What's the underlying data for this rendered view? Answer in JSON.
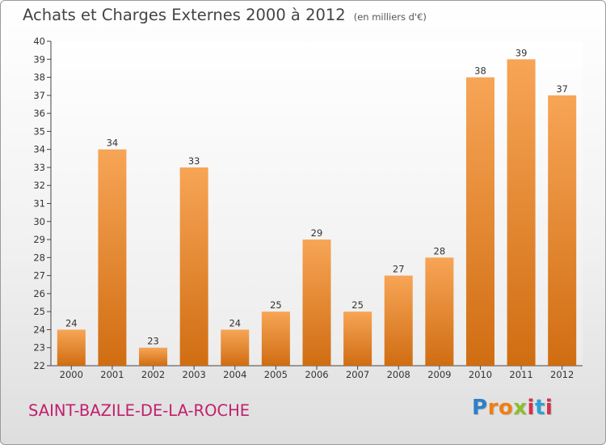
{
  "chart_data": {
    "type": "bar",
    "title": "Achats et Charges Externes 2000 à 2012",
    "unit_note": "(en milliers d'€)",
    "categories": [
      "2000",
      "2001",
      "2002",
      "2003",
      "2004",
      "2005",
      "2006",
      "2007",
      "2008",
      "2009",
      "2010",
      "2011",
      "2012"
    ],
    "values": [
      24,
      34,
      23,
      33,
      24,
      25,
      29,
      25,
      27,
      28,
      38,
      39,
      37
    ],
    "ylim": [
      22,
      40
    ],
    "yticks": [
      22,
      23,
      24,
      25,
      26,
      27,
      28,
      29,
      30,
      31,
      32,
      33,
      34,
      35,
      36,
      37,
      38,
      39,
      40
    ],
    "xlabel": "",
    "ylabel": "",
    "grid": false,
    "bar_color_light": "#f7a556",
    "bar_color_dark": "#d06d12"
  },
  "footer": {
    "commune": "SAINT-BAZILE-DE-LA-ROCHE",
    "logo_letters": [
      {
        "char": "P",
        "color": "#2e7fc7"
      },
      {
        "char": "r",
        "color": "#f07f12"
      },
      {
        "char": "o",
        "color": "#f07f12"
      },
      {
        "char": "x",
        "color": "#8cbf2c"
      },
      {
        "char": "i",
        "color": "#d6304a"
      },
      {
        "char": "t",
        "color": "#2e9fd8"
      },
      {
        "char": "i",
        "color": "#d6304a"
      }
    ]
  }
}
